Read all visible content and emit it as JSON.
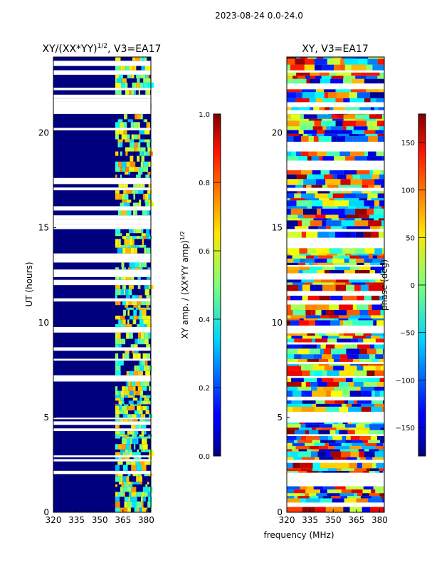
{
  "figure_title": "2023-08-24 0.0-24.0",
  "shared_xlabel": "frequency (MHz)",
  "chart_data": [
    {
      "type": "heatmap",
      "title": "XY/(XX*YY)^1/2, V3=EA17",
      "title_main": "XY/(XX*YY)",
      "title_exp": "1/2",
      "title_tail": ", V3=EA17",
      "xlabel": "",
      "ylabel": "UT (hours)",
      "x_ticks": [
        "320",
        "335",
        "350",
        "365",
        "380"
      ],
      "x_tick_values": [
        320,
        335,
        350,
        365,
        380
      ],
      "xlim": [
        320,
        383
      ],
      "y_ticks": [
        "0",
        "5",
        "10",
        "15",
        "20"
      ],
      "y_tick_values": [
        0,
        5,
        10,
        15,
        20
      ],
      "ylim": [
        0,
        24
      ],
      "colorbar": {
        "label": "XY amp. / (XX*YY amp)^1/2",
        "label_main": "XY amp. / (XX*YY amp)",
        "label_exp": "1/2",
        "ticks": [
          "0.0",
          "0.2",
          "0.4",
          "0.6",
          "0.8",
          "1.0"
        ],
        "tick_values": [
          0.0,
          0.2,
          0.4,
          0.6,
          0.8,
          1.0
        ],
        "range": [
          0.0,
          1.0
        ],
        "colormap": "jet"
      },
      "blank_bands_hours": [
        [
          21.0,
          21.6
        ],
        [
          12.4,
          12.7
        ],
        [
          2.9,
          3.0
        ]
      ],
      "bright_channel_bands_mhz": [
        [
          360,
          365
        ],
        [
          365,
          370
        ],
        [
          370,
          375
        ],
        [
          375,
          380
        ]
      ]
    },
    {
      "type": "heatmap",
      "title": "XY, V3=EA17",
      "xlabel": "frequency (MHz)",
      "ylabel": "",
      "x_ticks": [
        "320",
        "335",
        "350",
        "365",
        "380"
      ],
      "x_tick_values": [
        320,
        335,
        350,
        365,
        380
      ],
      "xlim": [
        320,
        383
      ],
      "y_ticks": [
        "0",
        "5",
        "10",
        "15",
        "20"
      ],
      "y_tick_values": [
        0,
        5,
        10,
        15,
        20
      ],
      "ylim": [
        0,
        24
      ],
      "colorbar": {
        "label": "phase (deg)",
        "ticks": [
          "−150",
          "−100",
          "−50",
          "0",
          "50",
          "100",
          "150"
        ],
        "tick_values": [
          -150,
          -100,
          -50,
          0,
          50,
          100,
          150
        ],
        "range": [
          -180,
          180
        ],
        "colormap": "jet"
      },
      "blank_bands_hours": [
        [
          21.0,
          21.2
        ],
        [
          12.4,
          12.6
        ]
      ]
    }
  ]
}
